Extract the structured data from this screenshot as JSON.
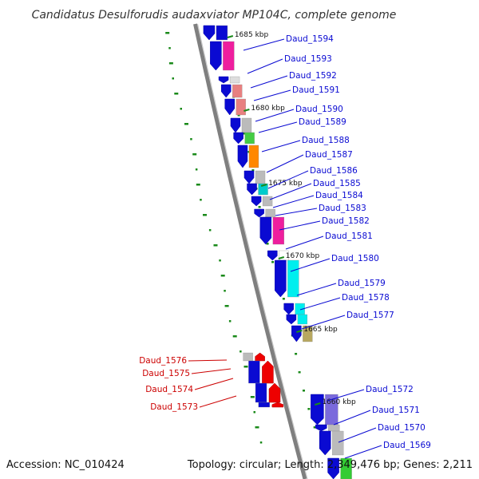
{
  "title": "Candidatus Desulforudis audaxviator MP104C, complete genome",
  "footer": {
    "accession": "Accession: NC_010424",
    "topology": "Topology: circular; Length: 2,349,476 bp; Genes: 2,211"
  },
  "kbp_labels": [
    "1685 kbp",
    "1680 kbp",
    "1675 kbp",
    "1670 kbp",
    "1665 kbp",
    "1660 kbp"
  ],
  "genes": [
    {
      "name": "Daud_1594",
      "color": "#0a0ad2"
    },
    {
      "name": "Daud_1593",
      "color": "#0a0ad2"
    },
    {
      "name": "Daud_1592",
      "color": "#0a0ad2"
    },
    {
      "name": "Daud_1591",
      "color": "#0a0ad2"
    },
    {
      "name": "Daud_1590",
      "color": "#0a0ad2"
    },
    {
      "name": "Daud_1589",
      "color": "#0a0ad2"
    },
    {
      "name": "Daud_1588",
      "color": "#0a0ad2"
    },
    {
      "name": "Daud_1587",
      "color": "#0a0ad2"
    },
    {
      "name": "Daud_1586",
      "color": "#0a0ad2"
    },
    {
      "name": "Daud_1585",
      "color": "#0a0ad2"
    },
    {
      "name": "Daud_1584",
      "color": "#0a0ad2"
    },
    {
      "name": "Daud_1583",
      "color": "#0a0ad2"
    },
    {
      "name": "Daud_1582",
      "color": "#0a0ad2"
    },
    {
      "name": "Daud_1581",
      "color": "#0a0ad2"
    },
    {
      "name": "Daud_1580",
      "color": "#0a0ad2"
    },
    {
      "name": "Daud_1579",
      "color": "#0a0ad2"
    },
    {
      "name": "Daud_1578",
      "color": "#0a0ad2"
    },
    {
      "name": "Daud_1577",
      "color": "#0a0ad2"
    },
    {
      "name": "Daud_1576",
      "color": "#cc0000"
    },
    {
      "name": "Daud_1575",
      "color": "#cc0000"
    },
    {
      "name": "Daud_1574",
      "color": "#cc0000"
    },
    {
      "name": "Daud_1573",
      "color": "#cc0000"
    },
    {
      "name": "Daud_1572",
      "color": "#0a0ad2"
    },
    {
      "name": "Daud_1571",
      "color": "#0a0ad2"
    },
    {
      "name": "Daud_1570",
      "color": "#0a0ad2"
    },
    {
      "name": "Daud_1569",
      "color": "#0a0ad2"
    }
  ],
  "colors": {
    "forward_strand": "#0a0ad2",
    "reverse_strand": "#ee0000",
    "backbone": "#7f7f7f",
    "tick": "#1a8a1a"
  }
}
